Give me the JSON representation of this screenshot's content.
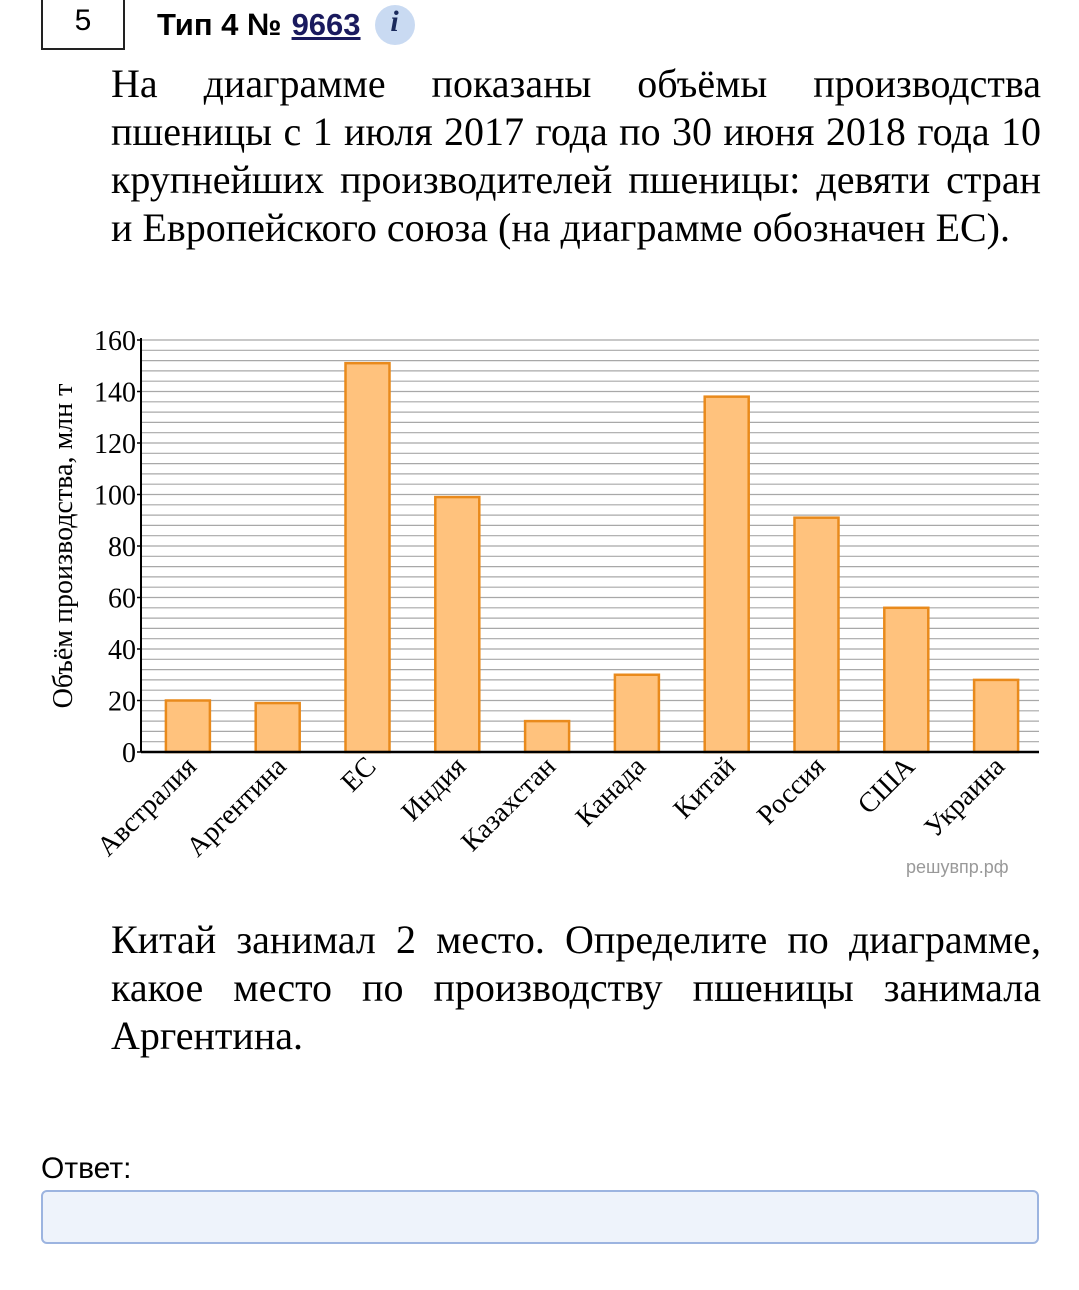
{
  "header": {
    "task_number": "5",
    "type_label": "Тип 4 №",
    "problem_id": "9663",
    "info_glyph": "i"
  },
  "intro_text": "На диаграмме показаны объёмы производства пшеницы с 1 июля 2017 года по 30 июня 2018 года 10 крупнейших производителей пшеницы: девяти стран и Европейского союза (на диаграмме обозначен ЕС).",
  "question_text": "Китай занимал 2 место. Определите по диаграмме, какое место по производству пшеницы занимала Аргентина.",
  "watermark": "решувпр.рф",
  "answer": {
    "label": "Ответ:",
    "value": ""
  },
  "colors": {
    "bar_fill": "#ffc27d",
    "bar_stroke": "#e98a1c",
    "grid": "#a8a8a8",
    "info_bg": "#c9daf2",
    "input_border": "#9cb4e0"
  },
  "chart_data": {
    "type": "bar",
    "ylabel": "Объём производства, млн т",
    "xlabel": "",
    "ylim": [
      0,
      160
    ],
    "yticks": [
      0,
      20,
      40,
      60,
      80,
      100,
      120,
      140,
      160
    ],
    "minor_grid_step": 4,
    "grid": true,
    "categories": [
      "Австралия",
      "Аргентина",
      "ЕС",
      "Индия",
      "Казахстан",
      "Канада",
      "Китай",
      "Россия",
      "США",
      "Украина"
    ],
    "values": [
      20,
      19,
      151,
      99,
      12,
      30,
      138,
      91,
      56,
      28
    ]
  }
}
